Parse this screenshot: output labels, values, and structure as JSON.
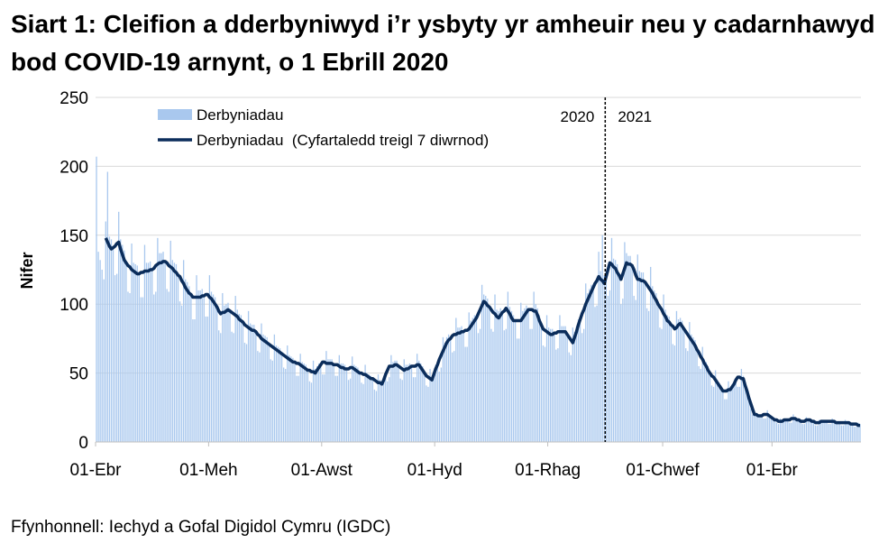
{
  "chart_data": {
    "type": "bar",
    "title": "Siart 1: Cleifion a dderbyniwyd i’r ysbyty yr amheuir neu y cadarnhawyd bod COVID-19 arnynt, o 1 Ebrill 2020",
    "y_label": "Nifer",
    "source": "Ffynhonnell: Iechyd a Gofal Digidol Cymru (IGDC)",
    "ylim": [
      0,
      250
    ],
    "yticks": [
      0,
      50,
      100,
      150,
      200,
      250
    ],
    "grid": true,
    "legend": "top-left",
    "divider": {
      "at": 275,
      "labels": [
        "2020",
        "2021"
      ]
    },
    "categories": [
      "01-Ebr",
      null,
      null,
      null,
      null,
      null,
      null,
      null,
      null,
      null,
      null,
      null,
      null,
      null,
      null,
      null,
      null,
      null,
      null,
      null,
      null,
      null,
      null,
      null,
      null,
      null,
      null,
      null,
      null,
      null,
      null,
      null,
      null,
      null,
      null,
      null,
      null,
      null,
      null,
      null,
      null,
      null,
      null,
      null,
      null,
      null,
      null,
      null,
      null,
      null,
      null,
      null,
      null,
      null,
      null,
      null,
      null,
      null,
      null,
      null,
      null,
      "01-Meh",
      null,
      null,
      null,
      null,
      null,
      null,
      null,
      null,
      null,
      null,
      null,
      null,
      null,
      null,
      null,
      null,
      null,
      null,
      null,
      null,
      null,
      null,
      null,
      null,
      null,
      null,
      null,
      null,
      null,
      null,
      null,
      null,
      null,
      null,
      null,
      null,
      null,
      null,
      null,
      null,
      null,
      null,
      null,
      null,
      null,
      null,
      null,
      null,
      null,
      null,
      null,
      null,
      null,
      null,
      null,
      null,
      null,
      null,
      null,
      null,
      "01-Awst",
      null,
      null,
      null,
      null,
      null,
      null,
      null,
      null,
      null,
      null,
      null,
      null,
      null,
      null,
      null,
      null,
      null,
      null,
      null,
      null,
      null,
      null,
      null,
      null,
      null,
      null,
      null,
      null,
      null,
      null,
      null,
      null,
      null,
      null,
      null,
      null,
      null,
      null,
      null,
      null,
      null,
      null,
      null,
      null,
      null,
      null,
      null,
      null,
      null,
      null,
      null,
      null,
      null,
      null,
      null,
      null,
      null,
      null,
      null,
      null,
      "01-Hyd",
      null,
      null,
      null,
      null,
      null,
      null,
      null,
      null,
      null,
      null,
      null,
      null,
      null,
      null,
      null,
      null,
      null,
      null,
      null,
      null,
      null,
      null,
      null,
      null,
      null,
      null,
      null,
      null,
      null,
      null,
      null,
      null,
      null,
      null,
      null,
      null,
      null,
      null,
      null,
      null,
      null,
      null,
      null,
      null,
      null,
      null,
      null,
      null,
      null,
      null,
      null,
      null,
      null,
      null,
      null,
      null,
      null,
      null,
      null,
      null,
      "01-Rhag",
      null,
      null,
      null,
      null,
      null,
      null,
      null,
      null,
      null,
      null,
      null,
      null,
      null,
      null,
      null,
      null,
      null,
      null,
      null,
      null,
      null,
      null,
      null,
      null,
      null,
      null,
      null,
      null,
      null,
      null,
      null,
      null,
      null,
      null,
      null,
      null,
      null,
      null,
      null,
      null,
      null,
      null,
      null,
      null,
      null,
      null,
      null,
      null,
      null,
      null,
      null,
      null,
      null,
      null,
      null,
      null,
      null,
      null,
      null,
      null,
      null,
      "01-Chwef",
      null,
      null,
      null,
      null,
      null,
      null,
      null,
      null,
      null,
      null,
      null,
      null,
      null,
      null,
      null,
      null,
      null,
      null,
      null,
      null,
      null,
      null,
      null,
      null,
      null,
      null,
      null,
      null,
      null,
      null,
      null,
      null,
      null,
      null,
      null,
      null,
      null,
      null,
      null,
      null,
      null,
      null,
      null,
      null,
      null,
      null,
      null,
      null,
      null,
      null,
      null,
      null,
      null,
      null,
      null,
      null,
      null,
      null,
      "01-Ebr",
      null,
      null,
      null,
      null,
      null,
      null,
      null,
      null,
      null,
      null,
      null,
      null,
      null,
      null,
      null,
      null,
      null,
      null,
      null,
      null,
      null,
      null,
      null,
      null,
      null,
      null,
      null,
      null,
      null,
      null,
      null,
      null,
      null,
      null,
      null,
      null,
      null,
      null,
      null,
      null,
      null,
      null,
      null,
      null,
      null,
      null,
      null
    ],
    "series": [
      {
        "name": "Derbyniadau",
        "type": "bar",
        "color": "#a9c8ee",
        "values": [
          207,
          138,
          132,
          125,
          118,
          160,
          196,
          149,
          147,
          141,
          121,
          122,
          167,
          147,
          143,
          139,
          130,
          109,
          108,
          144,
          130,
          129,
          128,
          122,
          105,
          105,
          143,
          130,
          130,
          131,
          125,
          107,
          109,
          148,
          137,
          137,
          138,
          131,
          111,
          109,
          146,
          132,
          130,
          129,
          121,
          102,
          99,
          132,
          118,
          116,
          113,
          107,
          89,
          89,
          121,
          110,
          110,
          111,
          106,
          91,
          91,
          121,
          109,
          107,
          105,
          98,
          81,
          79,
          108,
          99,
          100,
          101,
          95,
          80,
          79,
          106,
          96,
          93,
          92,
          87,
          72,
          71,
          95,
          86,
          85,
          85,
          80,
          66,
          65,
          86,
          78,
          77,
          76,
          71,
          60,
          59,
          78,
          70,
          69,
          68,
          64,
          54,
          53,
          70,
          63,
          62,
          61,
          58,
          48,
          48,
          64,
          58,
          57,
          56,
          52,
          44,
          43,
          59,
          53,
          55,
          57,
          56,
          49,
          49,
          66,
          60,
          60,
          60,
          56,
          48,
          48,
          63,
          57,
          57,
          56,
          53,
          45,
          46,
          62,
          56,
          55,
          54,
          50,
          43,
          42,
          56,
          50,
          49,
          48,
          46,
          38,
          37,
          49,
          45,
          44,
          47,
          49,
          44,
          47,
          63,
          58,
          59,
          59,
          55,
          46,
          45,
          60,
          56,
          56,
          57,
          55,
          47,
          47,
          64,
          59,
          57,
          55,
          50,
          41,
          40,
          53,
          47,
          51,
          56,
          56,
          51,
          54,
          76,
          72,
          76,
          78,
          75,
          65,
          66,
          90,
          83,
          83,
          84,
          80,
          69,
          69,
          94,
          88,
          90,
          92,
          90,
          79,
          82,
          114,
          107,
          106,
          104,
          98,
          82,
          80,
          107,
          96,
          95,
          97,
          94,
          81,
          82,
          109,
          98,
          95,
          92,
          88,
          75,
          75,
          101,
          95,
          97,
          99,
          96,
          82,
          82,
          109,
          100,
          97,
          92,
          85,
          70,
          69,
          92,
          83,
          82,
          82,
          79,
          67,
          68,
          92,
          84,
          84,
          84,
          78,
          65,
          63,
          83,
          80,
          84,
          89,
          89,
          79,
          82,
          115,
          108,
          111,
          114,
          112,
          98,
          99,
          138,
          124,
          150,
          121,
          120,
          106,
          110,
          148,
          133,
          132,
          129,
          121,
          100,
          104,
          145,
          137,
          135,
          135,
          128,
          106,
          103,
          136,
          124,
          123,
          123,
          116,
          97,
          95,
          127,
          113,
          110,
          108,
          100,
          83,
          82,
          107,
          96,
          92,
          91,
          85,
          71,
          70,
          95,
          89,
          90,
          88,
          82,
          68,
          66,
          87,
          78,
          76,
          74,
          67,
          55,
          53,
          69,
          60,
          58,
          55,
          50,
          41,
          40,
          52,
          45,
          43,
          41,
          37,
          31,
          31,
          44,
          40,
          42,
          44,
          45,
          40,
          40,
          53,
          48,
          43,
          39,
          32,
          24,
          20,
          23,
          21,
          20,
          20,
          19,
          17,
          17,
          23,
          20,
          19,
          18,
          16,
          14,
          13,
          17,
          16,
          17,
          17,
          16,
          14,
          14,
          20,
          18,
          17,
          17,
          15,
          13,
          13,
          18,
          17,
          17,
          16,
          15,
          12,
          12,
          16,
          16,
          16,
          16,
          15,
          13,
          13,
          17,
          16,
          15,
          15,
          14,
          12,
          12,
          16,
          15,
          15,
          14,
          13,
          11,
          11,
          14,
          13
        ]
      },
      {
        "name": "Derbyniadau  (Cyfartaledd treigl 7 diwrnod)",
        "type": "line",
        "color": "#0b2d5b",
        "values": [
          null,
          null,
          null,
          null,
          null,
          148,
          145,
          142,
          140,
          141,
          142,
          144,
          145,
          140,
          136,
          132,
          130,
          128,
          127,
          125,
          124,
          123,
          122,
          122,
          123,
          123,
          124,
          124,
          124,
          125,
          125,
          126,
          128,
          129,
          130,
          130,
          131,
          131,
          130,
          128,
          127,
          126,
          124,
          123,
          121,
          120,
          117,
          115,
          112,
          110,
          108,
          107,
          105,
          105,
          105,
          105,
          105,
          106,
          106,
          107,
          107,
          105,
          104,
          102,
          100,
          98,
          95,
          93,
          94,
          94,
          95,
          96,
          95,
          94,
          93,
          92,
          91,
          89,
          88,
          87,
          85,
          84,
          83,
          82,
          81,
          81,
          80,
          78,
          77,
          75,
          74,
          73,
          72,
          71,
          70,
          69,
          68,
          67,
          66,
          65,
          64,
          63,
          62,
          61,
          60,
          59,
          58,
          58,
          57,
          57,
          56,
          55,
          54,
          53,
          52,
          52,
          51,
          51,
          50,
          52,
          54,
          56,
          58,
          58,
          57,
          57,
          57,
          57,
          56,
          56,
          56,
          55,
          54,
          54,
          53,
          53,
          53,
          54,
          54,
          53,
          52,
          51,
          50,
          50,
          49,
          49,
          48,
          47,
          46,
          46,
          45,
          44,
          43,
          43,
          42,
          45,
          49,
          52,
          55,
          55,
          55,
          56,
          56,
          55,
          54,
          53,
          52,
          53,
          53,
          54,
          55,
          55,
          55,
          56,
          56,
          54,
          52,
          50,
          48,
          47,
          46,
          45,
          49,
          53,
          56,
          60,
          63,
          66,
          69,
          72,
          74,
          75,
          77,
          78,
          78,
          79,
          79,
          80,
          80,
          81,
          81,
          82,
          84,
          86,
          88,
          90,
          93,
          96,
          99,
          102,
          101,
          99,
          98,
          96,
          94,
          93,
          91,
          90,
          92,
          94,
          95,
          97,
          95,
          93,
          90,
          88,
          88,
          88,
          88,
          88,
          90,
          92,
          94,
          96,
          96,
          96,
          95,
          95,
          92,
          88,
          85,
          82,
          81,
          80,
          79,
          78,
          78,
          79,
          79,
          80,
          80,
          80,
          80,
          80,
          78,
          76,
          74,
          72,
          76,
          80,
          85,
          89,
          93,
          96,
          100,
          103,
          106,
          109,
          112,
          115,
          117,
          120,
          118,
          117,
          115,
          120,
          125,
          130,
          129,
          127,
          126,
          123,
          121,
          118,
          122,
          126,
          130,
          129,
          129,
          128,
          125,
          121,
          118,
          118,
          117,
          117,
          116,
          114,
          112,
          110,
          108,
          105,
          103,
          100,
          98,
          96,
          93,
          91,
          88,
          87,
          85,
          84,
          82,
          83,
          85,
          86,
          84,
          82,
          80,
          78,
          76,
          74,
          72,
          70,
          67,
          65,
          62,
          60,
          57,
          55,
          52,
          50,
          48,
          47,
          45,
          43,
          41,
          39,
          37,
          37,
          37,
          38,
          38,
          40,
          42,
          45,
          47,
          47,
          46,
          46,
          41,
          37,
          32,
          28,
          24,
          20,
          20,
          19,
          19,
          19,
          20,
          20,
          20,
          19,
          18,
          17,
          16,
          16,
          15,
          15,
          15,
          16,
          16,
          16,
          16,
          17,
          17,
          17,
          16,
          16,
          15,
          15,
          15,
          16,
          16,
          16,
          15,
          15,
          14,
          14,
          14,
          15,
          15,
          15,
          15,
          15,
          15,
          15,
          15,
          14,
          14,
          14,
          14,
          14,
          14,
          14,
          14,
          13,
          13,
          13,
          13,
          12,
          12
        ]
      }
    ]
  }
}
